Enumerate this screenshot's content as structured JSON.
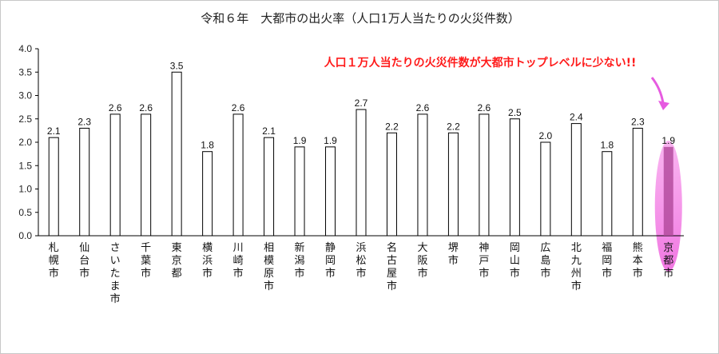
{
  "chart_data": {
    "type": "bar",
    "title": "令和６年　大都市の出火率（人口1万人当たりの火災件数）",
    "xlabel": "",
    "ylabel": "",
    "ylim": [
      0,
      4.0
    ],
    "yticks": [
      "0.0",
      "0.5",
      "1.0",
      "1.5",
      "2.0",
      "2.5",
      "3.0",
      "3.5",
      "4.0"
    ],
    "grid": false,
    "legend": "none",
    "categories": [
      "札幌市",
      "仙台市",
      "さいたま市",
      "千葉市",
      "東京都",
      "横浜市",
      "川崎市",
      "相模原市",
      "新潟市",
      "静岡市",
      "浜松市",
      "名古屋市",
      "大阪市",
      "堺市",
      "神戸市",
      "岡山市",
      "広島市",
      "北九州市",
      "福岡市",
      "熊本市",
      "京都市"
    ],
    "values": [
      2.1,
      2.3,
      2.6,
      2.6,
      3.5,
      1.8,
      2.6,
      2.1,
      1.9,
      1.9,
      2.7,
      2.2,
      2.6,
      2.2,
      2.6,
      2.5,
      2.0,
      2.4,
      1.8,
      2.3,
      1.9
    ],
    "value_labels": [
      "2.1",
      "2.3",
      "2.6",
      "2.6",
      "3.5",
      "1.8",
      "2.6",
      "2.1",
      "1.9",
      "1.9",
      "2.7",
      "2.2",
      "2.6",
      "2.2",
      "2.6",
      "2.5",
      "2.0",
      "2.4",
      "1.8",
      "2.3",
      "1.9"
    ],
    "highlight_category": "京都市",
    "annotation": "人口１万人当たりの火災件数が大都市トップレベルに少ない!!"
  },
  "colors": {
    "bar_fill": "#ffffff",
    "bar_stroke": "#000000",
    "highlight_bar": "#b0479a",
    "highlight_ellipse": "#f58ee6",
    "highlight_label": "#c8a8c8",
    "annotation_text": "#ff1a1a",
    "arrow": "#e65be0",
    "axis": "#000000"
  }
}
